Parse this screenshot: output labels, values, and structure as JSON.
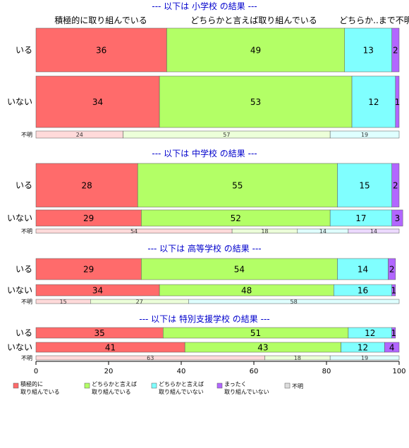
{
  "colors": {
    "positive": "#ff6b6b",
    "somewhat_positive": "#b3ff66",
    "somewhat_negative": "#80ffff",
    "none": "#b266ff",
    "unknown": "#dddddd"
  },
  "chart_data": {
    "type": "bar",
    "orientation": "horizontal",
    "stacked": "percent",
    "xlim": [
      0,
      100
    ],
    "xticks": [
      "0",
      "20",
      "40",
      "60",
      "80",
      "100"
    ],
    "column_headers": [
      "積極的に取り組んでいる",
      "どちらかと言えば取り組んでいる",
      "どちらか..",
      "まった..",
      "不明"
    ],
    "legend": [
      {
        "key": "positive",
        "label": "積極的に 取り組んでいる"
      },
      {
        "key": "somewhat_positive",
        "label": "どちらかと言えば 取り組んでいる"
      },
      {
        "key": "somewhat_negative",
        "label": "どちらかと言えば 取り組んでいない"
      },
      {
        "key": "none",
        "label": "まったく 取り組んでいない"
      },
      {
        "key": "unknown",
        "label": "不明"
      }
    ],
    "groups": [
      {
        "title": "--- 以下は 小学校 の結果 ---",
        "rows": [
          {
            "label": "いる",
            "values": [
              36,
              49,
              13,
              2,
              0
            ]
          },
          {
            "label": "いない",
            "values": [
              34,
              53,
              12,
              1,
              0
            ]
          },
          {
            "label": "不明",
            "values": [
              24,
              57,
              19,
              0,
              0
            ]
          }
        ]
      },
      {
        "title": "--- 以下は 中学校 の結果 ---",
        "rows": [
          {
            "label": "いる",
            "values": [
              28,
              55,
              15,
              2,
              0
            ]
          },
          {
            "label": "いない",
            "values": [
              29,
              52,
              17,
              3,
              0
            ]
          },
          {
            "label": "不明",
            "values": [
              54,
              18,
              14,
              14,
              0
            ]
          }
        ]
      },
      {
        "title": "--- 以下は 高等学校 の結果 ---",
        "rows": [
          {
            "label": "いる",
            "values": [
              29,
              54,
              14,
              2,
              0
            ]
          },
          {
            "label": "いない",
            "values": [
              34,
              48,
              16,
              1,
              0
            ]
          },
          {
            "label": "不明",
            "values": [
              15,
              27,
              58,
              0,
              0
            ]
          }
        ]
      },
      {
        "title": "--- 以下は 特別支援学校 の結果 ---",
        "rows": [
          {
            "label": "いる",
            "values": [
              35,
              51,
              12,
              1,
              0
            ]
          },
          {
            "label": "いない",
            "values": [
              41,
              43,
              12,
              4,
              0
            ]
          },
          {
            "label": "不明",
            "values": [
              63,
              18,
              19,
              0,
              0
            ]
          }
        ]
      }
    ]
  }
}
